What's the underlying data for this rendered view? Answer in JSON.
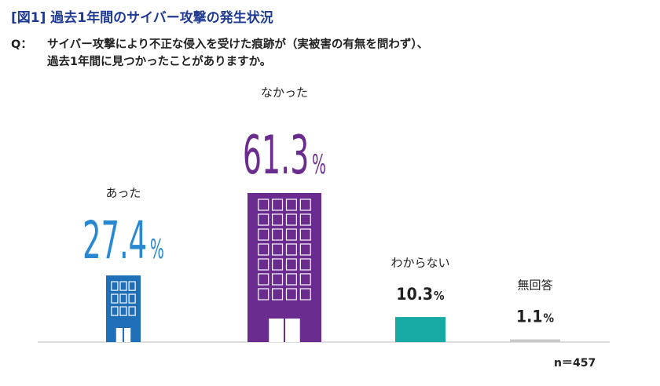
{
  "title": "[図1] 過去1年間のサイバー攻撃の発生状況",
  "question": {
    "prefix": "Q：",
    "line1": "サイバー攻撃により不正な侵入を受けた痕跡が（実被害の有無を問わず）、",
    "line2": "過去1年間に見つかったことがありますか。"
  },
  "sample_size": "n＝457",
  "chart_data": {
    "type": "bar",
    "title": "",
    "xlabel": "",
    "ylabel": "",
    "categories": [
      "あった",
      "なかった",
      "わからない",
      "無回答"
    ],
    "values": [
      27.4,
      61.3,
      10.3,
      1.1
    ],
    "value_labels": [
      "27.4",
      "61.3",
      "10.3",
      "1.1"
    ],
    "unit": "%",
    "ylim": [
      0,
      61.3
    ],
    "grid": false,
    "colors": [
      "#1f6fb8",
      "#6a2c8e",
      "#17a9a3",
      "#c8c8c8"
    ],
    "label_colors": [
      "#2a88d0",
      "#6a2c8e",
      "#222222",
      "#222222"
    ],
    "bar_style": [
      "building",
      "building",
      "plain",
      "plain"
    ]
  }
}
